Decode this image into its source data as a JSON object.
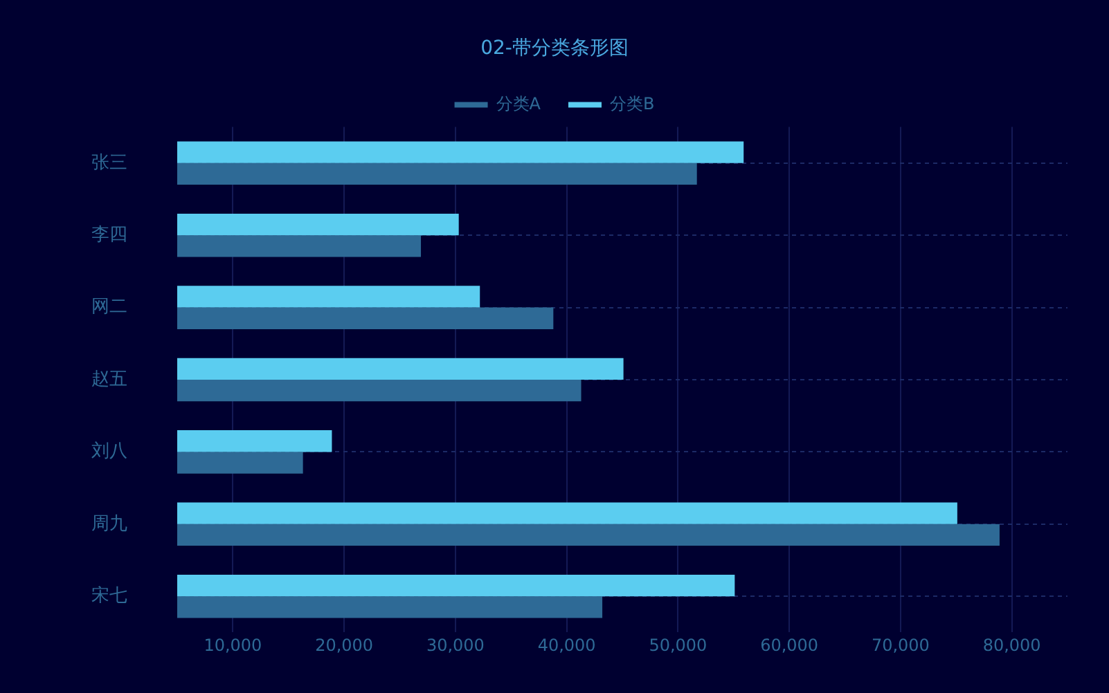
{
  "chart_data": {
    "type": "bar",
    "orientation": "horizontal",
    "title": "02-带分类条形图",
    "categories": [
      "张三",
      "李四",
      "网二",
      "赵五",
      "刘八",
      "周九",
      "宋七"
    ],
    "series": [
      {
        "name": "分类A",
        "color": "#2e6a96",
        "values": [
          51700,
          26900,
          38800,
          41300,
          16300,
          78900,
          43200
        ]
      },
      {
        "name": "分类B",
        "color": "#5bcdf0",
        "values": [
          55900,
          30300,
          32200,
          45100,
          18900,
          75100,
          55100
        ]
      }
    ],
    "xlim": [
      5000,
      85000
    ],
    "xticks": [
      {
        "value": 10000,
        "label": "10,000"
      },
      {
        "value": 20000,
        "label": "20,000"
      },
      {
        "value": 30000,
        "label": "30,000"
      },
      {
        "value": 40000,
        "label": "40,000"
      },
      {
        "value": 50000,
        "label": "50,000"
      },
      {
        "value": 60000,
        "label": "60,000"
      },
      {
        "value": 70000,
        "label": "70,000"
      },
      {
        "value": 80000,
        "label": "80,000"
      }
    ],
    "grid": true,
    "legend": "top"
  }
}
